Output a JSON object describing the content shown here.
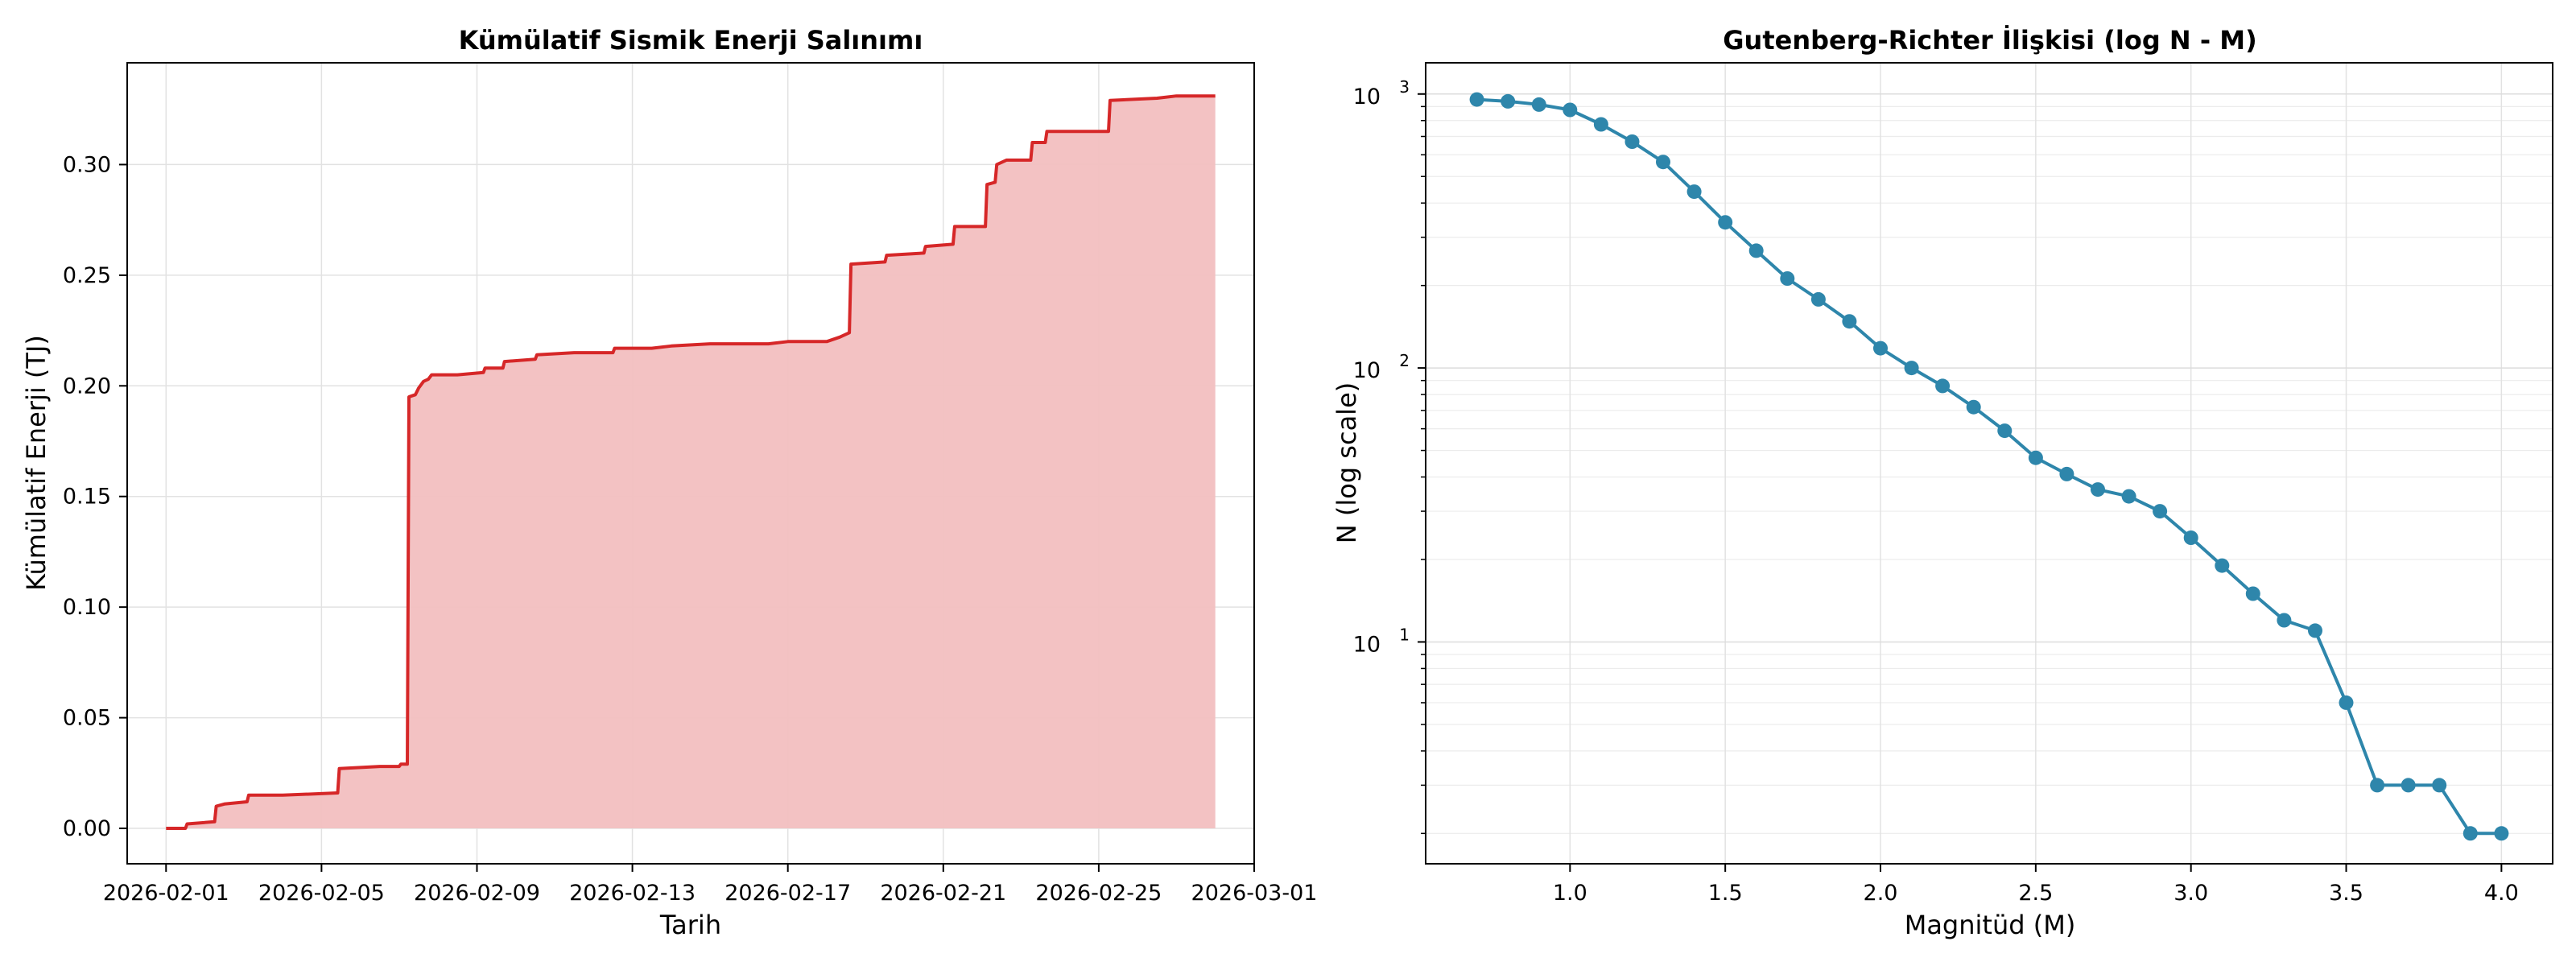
{
  "chart_data": [
    {
      "type": "area",
      "title": "Kümülatif Sismik Enerji Salınımı",
      "xlabel": "Tarih",
      "ylabel": "Kümülatif Enerji (TJ)",
      "x_ticks": [
        "2026-02-01",
        "2026-02-05",
        "2026-02-09",
        "2026-02-13",
        "2026-02-17",
        "2026-02-21",
        "2026-02-25",
        "2026-03-01"
      ],
      "y_ticks": [
        "0.00",
        "0.05",
        "0.10",
        "0.15",
        "0.20",
        "0.25",
        "0.30"
      ],
      "xlim": [
        "2026-01-31",
        "2026-03-01"
      ],
      "ylim": [
        -0.016,
        0.346
      ],
      "grid": true,
      "line_color": "#d62728",
      "fill_color": "#f2bfc0",
      "series": [
        {
          "values": [
            [
              "2026-02-01",
              0.0
            ],
            [
              "2026-02-01 12:00",
              0.0
            ],
            [
              "2026-02-01 13:00",
              0.002
            ],
            [
              "2026-02-02 06:00",
              0.003
            ],
            [
              "2026-02-02 07:00",
              0.01
            ],
            [
              "2026-02-02 12:00",
              0.011
            ],
            [
              "2026-02-03 02:00",
              0.012
            ],
            [
              "2026-02-03 03:00",
              0.015
            ],
            [
              "2026-02-04 00:00",
              0.015
            ],
            [
              "2026-02-05 10:00",
              0.016
            ],
            [
              "2026-02-05 11:00",
              0.027
            ],
            [
              "2026-02-06 12:00",
              0.028
            ],
            [
              "2026-02-07 00:00",
              0.028
            ],
            [
              "2026-02-07 01:00",
              0.029
            ],
            [
              "2026-02-07 05:00",
              0.029
            ],
            [
              "2026-02-07 06:00",
              0.195
            ],
            [
              "2026-02-07 10:00",
              0.196
            ],
            [
              "2026-02-07 12:00",
              0.199
            ],
            [
              "2026-02-07 15:00",
              0.202
            ],
            [
              "2026-02-07 18:00",
              0.203
            ],
            [
              "2026-02-07 20:00",
              0.205
            ],
            [
              "2026-02-08 12:00",
              0.205
            ],
            [
              "2026-02-09 04:00",
              0.206
            ],
            [
              "2026-02-09 05:00",
              0.208
            ],
            [
              "2026-02-09 16:00",
              0.208
            ],
            [
              "2026-02-09 17:00",
              0.211
            ],
            [
              "2026-02-10 12:00",
              0.212
            ],
            [
              "2026-02-10 13:00",
              0.214
            ],
            [
              "2026-02-11 12:00",
              0.215
            ],
            [
              "2026-02-12 12:00",
              0.215
            ],
            [
              "2026-02-12 13:00",
              0.217
            ],
            [
              "2026-02-13 12:00",
              0.217
            ],
            [
              "2026-02-14 00:00",
              0.218
            ],
            [
              "2026-02-15 00:00",
              0.219
            ],
            [
              "2026-02-16 12:00",
              0.219
            ],
            [
              "2026-02-17 00:00",
              0.22
            ],
            [
              "2026-02-18 00:00",
              0.22
            ],
            [
              "2026-02-18 08:00",
              0.222
            ],
            [
              "2026-02-18 14:00",
              0.224
            ],
            [
              "2026-02-18 15:00",
              0.255
            ],
            [
              "2026-02-19 12:00",
              0.256
            ],
            [
              "2026-02-19 13:00",
              0.259
            ],
            [
              "2026-02-20 12:00",
              0.26
            ],
            [
              "2026-02-20 13:00",
              0.263
            ],
            [
              "2026-02-21 06:00",
              0.264
            ],
            [
              "2026-02-21 07:00",
              0.272
            ],
            [
              "2026-02-22 02:00",
              0.272
            ],
            [
              "2026-02-22 03:00",
              0.291
            ],
            [
              "2026-02-22 08:00",
              0.292
            ],
            [
              "2026-02-22 09:00",
              0.3
            ],
            [
              "2026-02-22 15:00",
              0.302
            ],
            [
              "2026-02-23 06:00",
              0.302
            ],
            [
              "2026-02-23 07:00",
              0.31
            ],
            [
              "2026-02-23 15:00",
              0.31
            ],
            [
              "2026-02-23 16:00",
              0.315
            ],
            [
              "2026-02-25 06:00",
              0.315
            ],
            [
              "2026-02-25 07:00",
              0.329
            ],
            [
              "2026-02-26 12:00",
              0.33
            ],
            [
              "2026-02-27 00:00",
              0.331
            ],
            [
              "2026-02-28 00:00",
              0.331
            ]
          ]
        }
      ]
    },
    {
      "type": "line",
      "title": "Gutenberg-Richter İlişkisi (log N - M)",
      "xlabel": "Magnitüd (M)",
      "ylabel": "N (log scale)",
      "y_scale": "log",
      "x_ticks": [
        "1.0",
        "1.5",
        "2.0",
        "2.5",
        "3.0",
        "3.5",
        "4.0"
      ],
      "y_ticks": [
        {
          "base": "10",
          "exp": "1"
        },
        {
          "base": "10",
          "exp": "2"
        },
        {
          "base": "10",
          "exp": "3"
        }
      ],
      "xlim": [
        0.535,
        4.165
      ],
      "ylim": [
        1.55,
        1300
      ],
      "grid": true,
      "line_color": "#2e86ab",
      "marker": "circle",
      "x": [
        0.7,
        0.8,
        0.9,
        1.0,
        1.1,
        1.2,
        1.3,
        1.4,
        1.5,
        1.6,
        1.7,
        1.8,
        1.9,
        2.0,
        2.1,
        2.2,
        2.3,
        2.4,
        2.5,
        2.6,
        2.7,
        2.8,
        2.9,
        3.0,
        3.1,
        3.2,
        3.3,
        3.4,
        3.5,
        3.6,
        3.7,
        3.8,
        3.9,
        4.0
      ],
      "series": [
        {
          "values": [
            955,
            940,
            915,
            875,
            775,
            670,
            565,
            440,
            340,
            268,
            212,
            178,
            148,
            118,
            100,
            86,
            72,
            59,
            47,
            41,
            36,
            34,
            30,
            24,
            19,
            15,
            12,
            11,
            6,
            3,
            3,
            3,
            2,
            2
          ]
        }
      ]
    }
  ]
}
